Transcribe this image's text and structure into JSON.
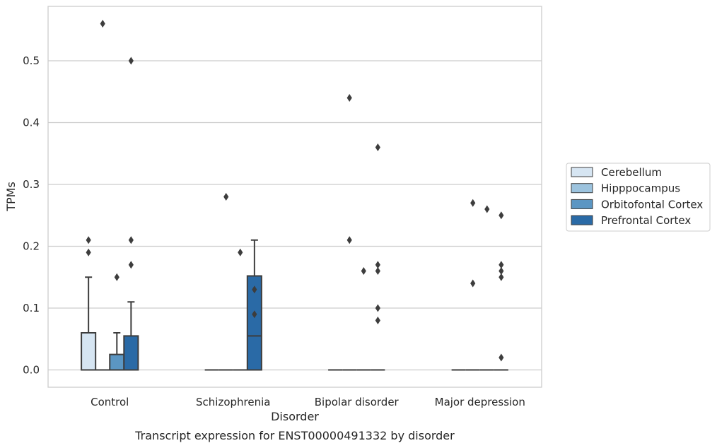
{
  "caption": "Transcript expression for ENST00000491332 by disorder",
  "chart_data": {
    "type": "box",
    "title": "",
    "xlabel": "Disorder",
    "ylabel": "TPMs",
    "ylim": [
      -0.028,
      0.588
    ],
    "yticks": [
      0.0,
      0.1,
      0.2,
      0.3,
      0.4,
      0.5
    ],
    "ytick_labels": [
      "0.0",
      "0.1",
      "0.2",
      "0.3",
      "0.4",
      "0.5"
    ],
    "grid": "horizontal",
    "legend_position": "right",
    "categories": [
      "Control",
      "Schizophrenia",
      "Bipolar disorder",
      "Major depression"
    ],
    "series": [
      {
        "name": "Cerebellum",
        "color": "#d6e5f2",
        "boxes": [
          {
            "q1": 0.0,
            "median": 0.0,
            "q3": 0.06,
            "whisker_low": 0.0,
            "whisker_high": 0.15,
            "outliers": [
              0.19,
              0.21
            ]
          },
          {
            "q1": 0.0,
            "median": 0.0,
            "q3": 0.0,
            "whisker_low": 0.0,
            "whisker_high": 0.0,
            "outliers": []
          },
          {
            "q1": 0.0,
            "median": 0.0,
            "q3": 0.0,
            "whisker_low": 0.0,
            "whisker_high": 0.0,
            "outliers": []
          },
          {
            "q1": 0.0,
            "median": 0.0,
            "q3": 0.0,
            "whisker_low": 0.0,
            "whisker_high": 0.0,
            "outliers": []
          }
        ]
      },
      {
        "name": "Hipppocampus",
        "color": "#9cc3de",
        "boxes": [
          {
            "q1": 0.0,
            "median": 0.0,
            "q3": 0.0,
            "whisker_low": 0.0,
            "whisker_high": 0.0,
            "outliers": [
              0.56
            ]
          },
          {
            "q1": 0.0,
            "median": 0.0,
            "q3": 0.0,
            "whisker_low": 0.0,
            "whisker_high": 0.0,
            "outliers": [
              0.28
            ]
          },
          {
            "q1": 0.0,
            "median": 0.0,
            "q3": 0.0,
            "whisker_low": 0.0,
            "whisker_high": 0.0,
            "outliers": [
              0.44,
              0.21
            ]
          },
          {
            "q1": 0.0,
            "median": 0.0,
            "q3": 0.0,
            "whisker_low": 0.0,
            "whisker_high": 0.0,
            "outliers": [
              0.27,
              0.14
            ]
          }
        ]
      },
      {
        "name": "Orbitofontal Cortex",
        "color": "#5b96c3",
        "boxes": [
          {
            "q1": 0.0,
            "median": 0.0,
            "q3": 0.025,
            "whisker_low": 0.0,
            "whisker_high": 0.06,
            "outliers": [
              0.15
            ]
          },
          {
            "q1": 0.0,
            "median": 0.0,
            "q3": 0.0,
            "whisker_low": 0.0,
            "whisker_high": 0.0,
            "outliers": [
              0.19
            ]
          },
          {
            "q1": 0.0,
            "median": 0.0,
            "q3": 0.0,
            "whisker_low": 0.0,
            "whisker_high": 0.0,
            "outliers": [
              0.16
            ]
          },
          {
            "q1": 0.0,
            "median": 0.0,
            "q3": 0.0,
            "whisker_low": 0.0,
            "whisker_high": 0.0,
            "outliers": [
              0.26
            ]
          }
        ]
      },
      {
        "name": "Prefrontal Cortex",
        "color": "#2a6aa6",
        "boxes": [
          {
            "q1": 0.0,
            "median": 0.0,
            "q3": 0.055,
            "whisker_low": 0.0,
            "whisker_high": 0.11,
            "outliers": [
              0.5,
              0.21,
              0.17
            ]
          },
          {
            "q1": 0.0,
            "median": 0.055,
            "q3": 0.152,
            "whisker_low": 0.0,
            "whisker_high": 0.21,
            "outliers": [
              0.13,
              0.09
            ]
          },
          {
            "q1": 0.0,
            "median": 0.0,
            "q3": 0.0,
            "whisker_low": 0.0,
            "whisker_high": 0.0,
            "outliers": [
              0.1,
              0.08,
              0.36,
              0.17,
              0.16
            ]
          },
          {
            "q1": 0.0,
            "median": 0.0,
            "q3": 0.0,
            "whisker_low": 0.0,
            "whisker_high": 0.0,
            "outliers": [
              0.25,
              0.02,
              0.17,
              0.16,
              0.15
            ]
          }
        ]
      }
    ]
  }
}
